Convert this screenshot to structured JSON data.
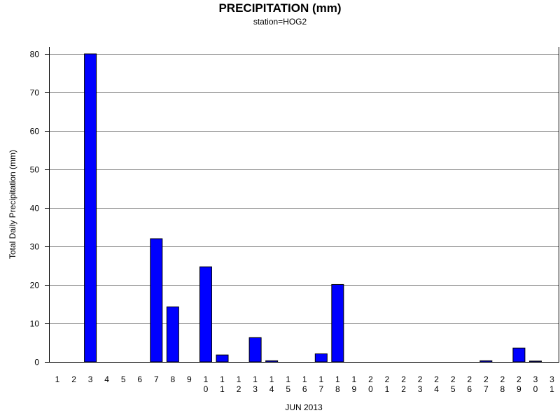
{
  "chart_data": {
    "type": "bar",
    "title": "PRECIPITATION (mm)",
    "subtitle": "station=HOG2",
    "xlabel": "JUN 2013",
    "ylabel": "Total Daily Precipitation (mm)",
    "ylim": [
      0,
      80
    ],
    "yticks": [
      0,
      10,
      20,
      30,
      40,
      50,
      60,
      70,
      80
    ],
    "grid": true,
    "categories": [
      "1",
      "2",
      "3",
      "4",
      "5",
      "6",
      "7",
      "8",
      "9",
      "10",
      "11",
      "12",
      "13",
      "14",
      "15",
      "16",
      "17",
      "18",
      "19",
      "20",
      "21",
      "22",
      "23",
      "24",
      "25",
      "26",
      "27",
      "28",
      "29",
      "30",
      "31"
    ],
    "values": [
      0,
      0,
      80,
      0,
      0,
      0,
      32,
      14.3,
      0,
      24.7,
      1.8,
      0,
      6.3,
      0.3,
      0,
      0,
      2.1,
      20.1,
      0,
      0,
      0,
      0,
      0,
      0,
      0,
      0,
      0.3,
      0,
      3.6,
      0.1,
      0
    ],
    "colors": {
      "bar_fill": "#0000ff",
      "bar_stroke": "#000000",
      "grid": "#808080",
      "axis": "#000000"
    }
  }
}
